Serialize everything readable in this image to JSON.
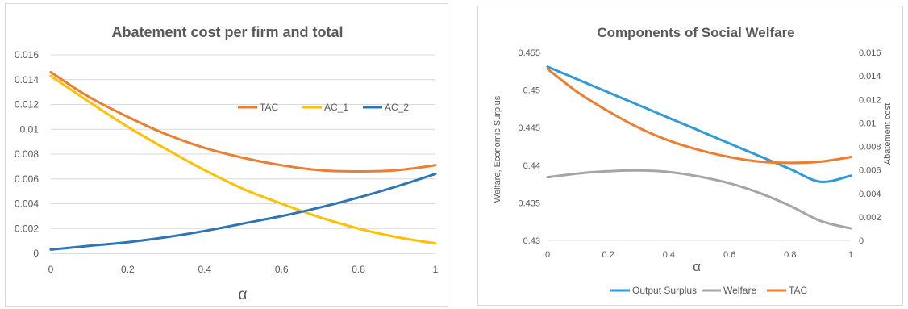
{
  "chart_data": [
    {
      "type": "line",
      "title": "Abatement cost per firm and total",
      "xlabel": "α",
      "ylabel": "",
      "xlim": [
        0,
        1
      ],
      "ylim": [
        0,
        0.016
      ],
      "x_ticks": [
        "0",
        "0.2",
        "0.4",
        "0.6",
        "0.8",
        "1"
      ],
      "y_ticks": [
        "0",
        "0.002",
        "0.004",
        "0.006",
        "0.008",
        "0.01",
        "0.012",
        "0.014",
        "0.016"
      ],
      "grid": "horizontal",
      "legend_position": "top-right",
      "x": [
        0,
        0.1,
        0.2,
        0.3,
        0.4,
        0.5,
        0.6,
        0.7,
        0.8,
        0.9,
        1.0
      ],
      "series": [
        {
          "name": "TAC",
          "color": "#ED7D31",
          "values": [
            0.0146,
            0.0126,
            0.011,
            0.0096,
            0.0085,
            0.0077,
            0.0071,
            0.0067,
            0.0066,
            0.0067,
            0.0071
          ]
        },
        {
          "name": "AC_1",
          "color": "#FFC000",
          "values": [
            0.0143,
            0.0122,
            0.0102,
            0.0084,
            0.0067,
            0.0052,
            0.004,
            0.0029,
            0.002,
            0.0013,
            0.0008
          ]
        },
        {
          "name": "AC_2",
          "color": "#2E75B6",
          "values": [
            0.0003,
            0.0006,
            0.0009,
            0.0013,
            0.0018,
            0.0024,
            0.003,
            0.0037,
            0.0045,
            0.0054,
            0.0064
          ]
        }
      ]
    },
    {
      "type": "line",
      "title": "Components of Social Welfare",
      "xlabel": "α",
      "ylabel": "Welfare, Economic Surplus",
      "y2label": "Abatement cost",
      "xlim": [
        0,
        1
      ],
      "ylim": [
        0.43,
        0.455
      ],
      "y2lim": [
        0,
        0.016
      ],
      "x_ticks": [
        "0",
        "0.2",
        "0.4",
        "0.6",
        "0.8",
        "1"
      ],
      "y_ticks": [
        "0.43",
        "0.435",
        "0.44",
        "0.445",
        "0.45",
        "0.455"
      ],
      "y2_ticks": [
        "0",
        "0.002",
        "0.004",
        "0.006",
        "0.008",
        "0.01",
        "0.012",
        "0.014",
        "0.016"
      ],
      "grid": "none",
      "legend_position": "bottom",
      "x": [
        0,
        0.1,
        0.2,
        0.3,
        0.4,
        0.5,
        0.6,
        0.7,
        0.8,
        0.9,
        1.0
      ],
      "series": [
        {
          "name": "Output Surplus",
          "axis": "left",
          "color": "#2E9BD6",
          "values": [
            0.4531,
            0.4514,
            0.4497,
            0.448,
            0.4463,
            0.4446,
            0.4429,
            0.4412,
            0.4395,
            0.4378,
            0.4386
          ]
        },
        {
          "name": "Welfare",
          "axis": "left",
          "color": "#A5A5A5",
          "values": [
            0.4384,
            0.4389,
            0.4392,
            0.4393,
            0.4391,
            0.4385,
            0.4376,
            0.4363,
            0.4346,
            0.4326,
            0.4316
          ]
        },
        {
          "name": "TAC",
          "axis": "right",
          "color": "#ED7D31",
          "values": [
            0.0146,
            0.0126,
            0.011,
            0.0096,
            0.0085,
            0.0077,
            0.0071,
            0.0067,
            0.0066,
            0.0067,
            0.0071
          ]
        }
      ]
    }
  ]
}
